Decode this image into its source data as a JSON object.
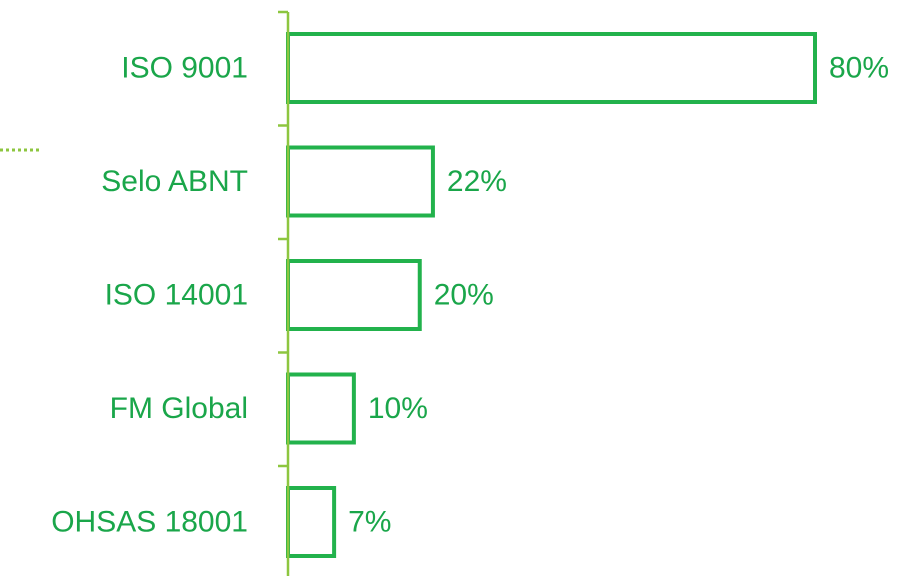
{
  "chart_data": {
    "type": "bar",
    "orientation": "horizontal",
    "categories": [
      "ISO 9001",
      "Selo ABNT",
      "ISO 14001",
      "FM Global",
      "OHSAS 18001"
    ],
    "values": [
      80,
      22,
      20,
      10,
      7
    ],
    "value_labels": [
      "80%",
      "22%",
      "20%",
      "10%",
      "7%"
    ],
    "xlim": [
      0,
      100
    ],
    "grid": false,
    "legend": "none",
    "colors": {
      "bar_stroke": "#22b24c",
      "bar_fill": "#ffffff",
      "axis": "#8dc63f",
      "text": "#1aa64a",
      "dotted_accent": "#8dc63f"
    }
  }
}
